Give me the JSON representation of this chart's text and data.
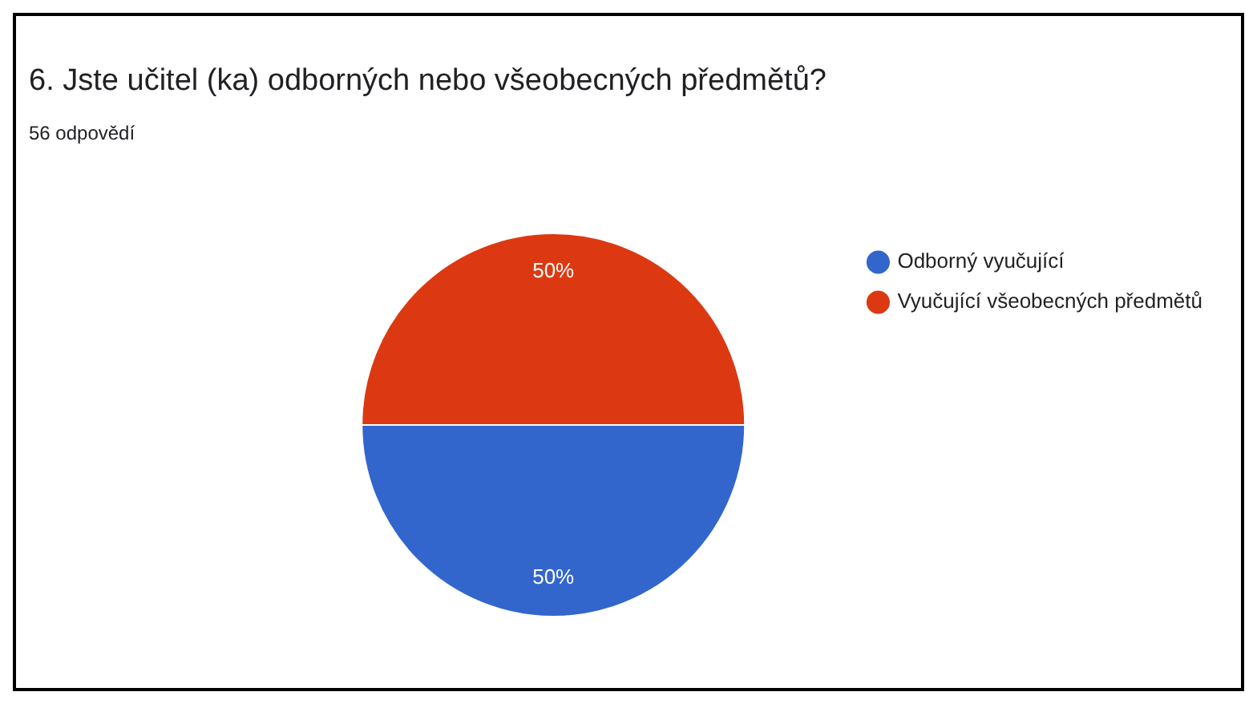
{
  "chart_data": {
    "type": "pie",
    "title": "6. Jste učitel (ka) odborných nebo všeobecných předmětů?",
    "subtitle": "56 odpovědí",
    "categories": [
      "Odborný vyučující",
      "Vyučující všeobecných předmětů"
    ],
    "values": [
      50,
      50
    ],
    "colors": [
      "#3366cc",
      "#dc3912"
    ],
    "value_labels": [
      "50%",
      "50%"
    ],
    "legend": "right"
  }
}
